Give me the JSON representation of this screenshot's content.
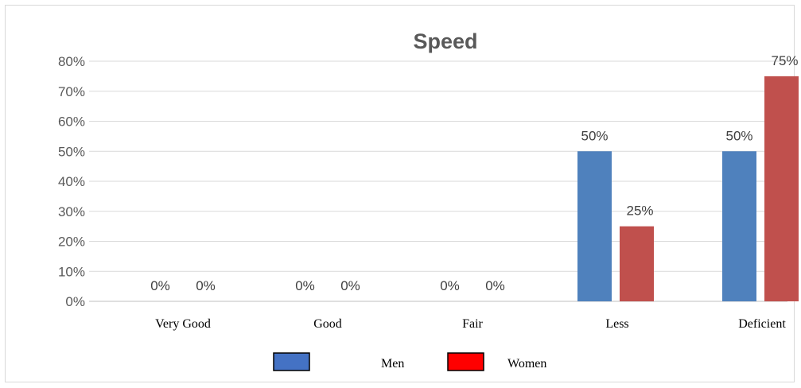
{
  "chart_data": {
    "type": "bar",
    "title": "Speed",
    "categories": [
      "Very Good",
      "Good",
      "Fair",
      "Less",
      "Deficient"
    ],
    "series": [
      {
        "name": "Men",
        "values": [
          0,
          0,
          0,
          50,
          50
        ],
        "color": "#4f81bd"
      },
      {
        "name": "Women",
        "values": [
          0,
          0,
          0,
          25,
          75
        ],
        "color": "#c0504d"
      }
    ],
    "data_labels": [
      [
        "0%",
        "0%",
        "0%",
        "50%",
        "50%"
      ],
      [
        "0%",
        "0%",
        "0%",
        "25%",
        "75%"
      ]
    ],
    "y_tick_labels": [
      "0%",
      "10%",
      "20%",
      "30%",
      "40%",
      "50%",
      "60%",
      "70%",
      "80%"
    ],
    "ylim": [
      0,
      80
    ],
    "grid": true,
    "legend_position": "bottom",
    "legend_swatch_colors": [
      "#4472c4",
      "#ff0000"
    ]
  }
}
